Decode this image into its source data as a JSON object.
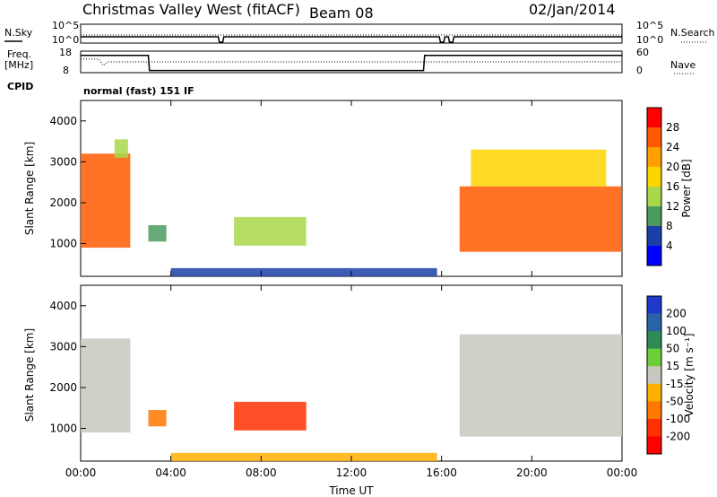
{
  "header": {
    "site": "Christmas Valley West (fitACF)",
    "beam": "Beam 08",
    "date": "02/Jan/2014"
  },
  "left_labels": {
    "nsky": "N.Sky",
    "freq_line1": "Freq.",
    "freq_line2": "[MHz]",
    "cpid": "CPID"
  },
  "right_labels": {
    "nsearch": "N.Search",
    "nave": "Nave"
  },
  "cpid_value": "normal (fast) 151 IF",
  "chart_data": [
    {
      "type": "line",
      "name": "noise",
      "left_ticks": [
        "10^5",
        "10^0"
      ],
      "right_ticks": [
        "10^5",
        "10^0"
      ],
      "x": [
        0,
        6.1,
        6.15,
        6.3,
        6.35,
        6.7,
        6.75,
        15.9,
        15.95,
        16.1,
        16.15,
        16.3,
        16.35,
        16.5,
        16.55,
        24
      ],
      "nsky": [
        1,
        1,
        0,
        0,
        1,
        1,
        1,
        1,
        0,
        0,
        1,
        1,
        0,
        0,
        1,
        1
      ],
      "nsearch": [
        1,
        1,
        1,
        1,
        1,
        1,
        1,
        1,
        1,
        1,
        1,
        1,
        1,
        1,
        1,
        1
      ]
    },
    {
      "type": "line",
      "name": "freq_nave",
      "left_ticks": [
        "18",
        "8"
      ],
      "right_ticks": [
        "60",
        "0"
      ],
      "freq_x": [
        0,
        3.0,
        3.05,
        15.2,
        15.25,
        24
      ],
      "freq_y": [
        16,
        16,
        9,
        9,
        16,
        16
      ],
      "nave_x": [
        0,
        0.8,
        1.0,
        1.2,
        24
      ],
      "nave_y": [
        38,
        38,
        20,
        30,
        30
      ]
    },
    {
      "type": "heatmap",
      "name": "power",
      "x_range": [
        0,
        24
      ],
      "y_range": [
        200,
        4500
      ],
      "ylabel": "Slant Range [km]",
      "yticks": [
        1000,
        2000,
        3000,
        4000
      ],
      "colorbar_label": "Power [dB]",
      "colorbar_ticks": [
        "28",
        "24",
        "20",
        "16",
        "12",
        "8",
        "4"
      ],
      "colorbar_colors": [
        "#ff0000",
        "#ff5a00",
        "#ff9f00",
        "#ffd500",
        "#a9d84b",
        "#4c9a5f",
        "#1a3fa8",
        "#0000ff"
      ],
      "regions": [
        {
          "t0": 0.0,
          "t1": 2.2,
          "r0": 900,
          "r1": 3200,
          "value": 26
        },
        {
          "t0": 1.5,
          "t1": 2.1,
          "r0": 3100,
          "r1": 3550,
          "value": 12
        },
        {
          "t0": 3.0,
          "t1": 3.8,
          "r0": 1050,
          "r1": 1450,
          "value": 10
        },
        {
          "t0": 6.8,
          "t1": 10.0,
          "r0": 950,
          "r1": 1650,
          "value": 14
        },
        {
          "t0": 16.8,
          "t1": 24.0,
          "r0": 800,
          "r1": 2400,
          "value": 26
        },
        {
          "t0": 17.3,
          "t1": 23.3,
          "r0": 2400,
          "r1": 3300,
          "value": 16
        },
        {
          "t0": 4.0,
          "t1": 15.8,
          "r0": 200,
          "r1": 400,
          "value": 6
        }
      ]
    },
    {
      "type": "heatmap",
      "name": "velocity",
      "x_range": [
        0,
        24
      ],
      "y_range": [
        200,
        4500
      ],
      "ylabel": "Slant Range [km]",
      "yticks": [
        1000,
        2000,
        3000,
        4000
      ],
      "xlabel": "Time UT",
      "xticks": [
        "00:00",
        "04:00",
        "08:00",
        "12:00",
        "16:00",
        "20:00",
        "00:00"
      ],
      "colorbar_label": "Velocity [m s⁻¹]",
      "colorbar_ticks": [
        "200",
        "100",
        "50",
        "15",
        "-15",
        "-50",
        "-100",
        "-200"
      ],
      "colorbar_colors": [
        "#1f39c9",
        "#2a62a8",
        "#2e8b57",
        "#6ccf3a",
        "#c8c8c0",
        "#ffb000",
        "#ff7800",
        "#ff3000",
        "#ff0000"
      ],
      "regions": [
        {
          "t0": 0.0,
          "t1": 2.2,
          "r0": 900,
          "r1": 3200,
          "value": 0
        },
        {
          "t0": 3.0,
          "t1": 3.8,
          "r0": 1050,
          "r1": 1450,
          "value": -80
        },
        {
          "t0": 6.8,
          "t1": 10.0,
          "r0": 950,
          "r1": 1650,
          "value": -120
        },
        {
          "t0": 16.8,
          "t1": 24.0,
          "r0": 800,
          "r1": 3300,
          "value": 0
        },
        {
          "t0": 4.0,
          "t1": 15.8,
          "r0": 200,
          "r1": 400,
          "value": -30
        }
      ]
    }
  ]
}
